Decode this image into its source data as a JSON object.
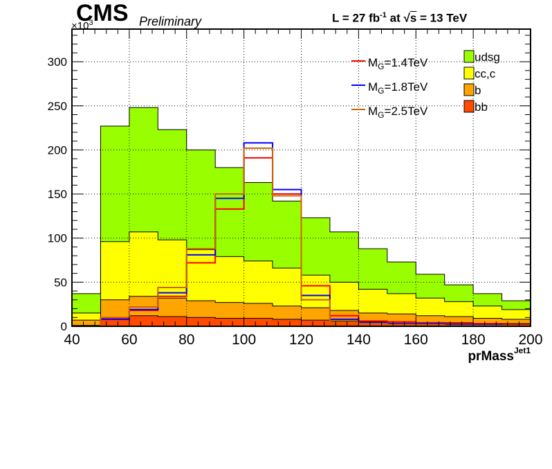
{
  "header": {
    "experiment": "CMS",
    "status": "Preliminary",
    "lumi_prefix": "L = 27 fb",
    "lumi_exp": "-1",
    "lumi_mid": " at  √",
    "lumi_s": "s",
    "lumi_suffix": " = 13 TeV"
  },
  "chart_data": {
    "type": "bar",
    "stacked": true,
    "xlabel": "prMass",
    "xlabel_sup": "Jet1",
    "ymultiplier": "×10",
    "ymultiplier_exp": "3",
    "xlim": [
      40,
      200
    ],
    "ylim": [
      0,
      337
    ],
    "grid": true,
    "legend_position": "top-right",
    "bin_edges": [
      40,
      50,
      60,
      70,
      80,
      90,
      100,
      110,
      120,
      130,
      140,
      150,
      160,
      170,
      180,
      190,
      200
    ],
    "x_ticks": [
      "40",
      "60",
      "80",
      "100",
      "120",
      "140",
      "160",
      "180",
      "200"
    ],
    "y_ticks": [
      "0",
      "50",
      "100",
      "150",
      "200",
      "250",
      "300"
    ],
    "background": [
      {
        "name": "bb",
        "color": "#ff4a00",
        "values": [
          1,
          10,
          12,
          11,
          10,
          9,
          9,
          8,
          7,
          6,
          5,
          5,
          4,
          4,
          3,
          3
        ]
      },
      {
        "name": "b",
        "color": "#ffa500",
        "values": [
          6,
          20,
          22,
          21,
          19,
          18,
          17,
          15,
          14,
          12,
          10,
          9,
          8,
          7,
          6,
          5
        ]
      },
      {
        "name": "cc,c",
        "color": "#ffff00",
        "values": [
          8,
          66,
          73,
          66,
          58,
          52,
          48,
          43,
          37,
          32,
          27,
          23,
          20,
          17,
          14,
          11
        ]
      },
      {
        "name": "udsg",
        "color": "#99ff00",
        "values": [
          22,
          131,
          141,
          125,
          113,
          101,
          89,
          76,
          65,
          57,
          46,
          36,
          27,
          19,
          14,
          10
        ]
      }
    ],
    "signals": [
      {
        "name": "1.4TeV",
        "color": "#ff0000",
        "values": [
          0,
          9,
          18,
          34,
          72,
          133,
          191,
          150,
          46,
          12,
          6,
          5,
          4,
          3,
          3,
          2
        ]
      },
      {
        "name": "1.8TeV",
        "color": "#0000ff",
        "values": [
          0,
          8,
          19,
          38,
          81,
          145,
          208,
          155,
          35,
          8,
          4,
          3,
          3,
          2,
          2,
          1
        ]
      },
      {
        "name": "2.5TeV",
        "color": "#cc6600",
        "values": [
          0,
          10,
          22,
          44,
          88,
          150,
          202,
          148,
          30,
          5,
          3,
          2,
          2,
          1,
          1,
          1
        ]
      }
    ],
    "signal_label_prefix": "M",
    "signal_label_sub": "G",
    "signal_label_sep": "="
  }
}
